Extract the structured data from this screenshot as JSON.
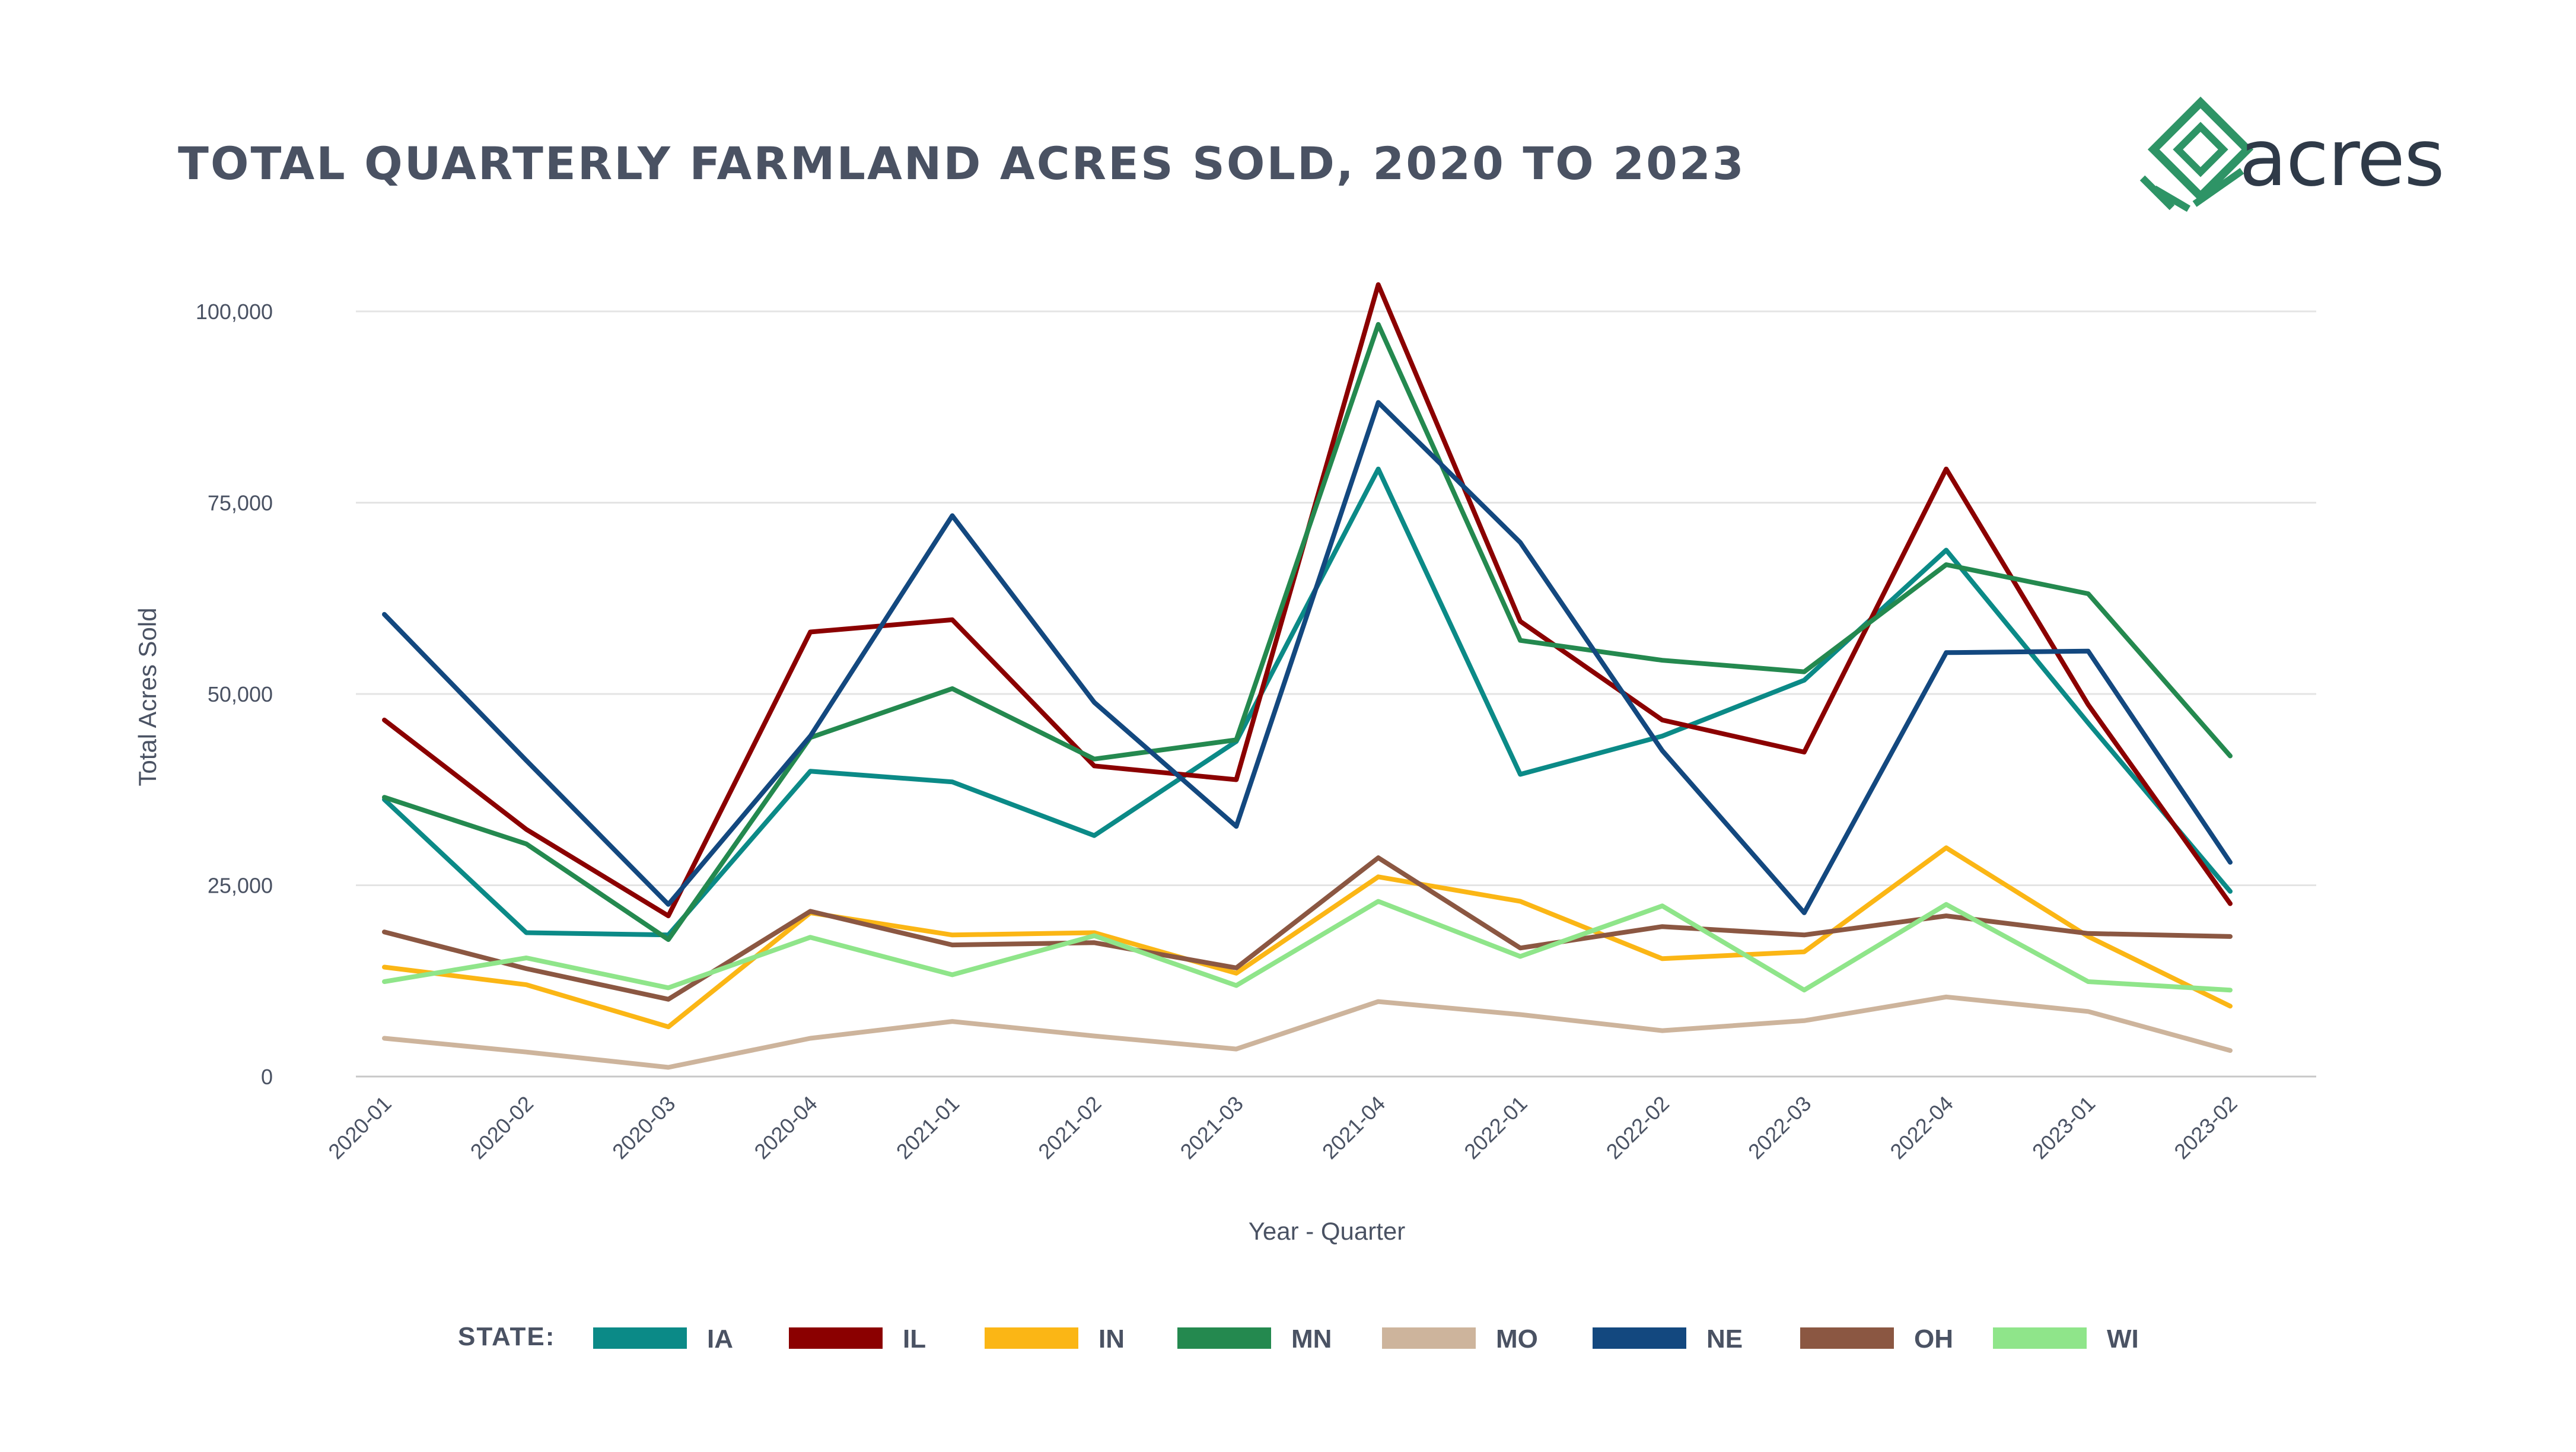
{
  "logo": {
    "text": "acres",
    "colors": {
      "mark": "#2e9466",
      "text": "#2f3a48"
    }
  },
  "chart_data": {
    "type": "line",
    "title": "TOTAL QUARTERLY FARMLAND ACRES SOLD, 2020 TO 2023",
    "xlabel": "Year - Quarter",
    "ylabel": "Total Acres Sold",
    "ylim": [
      0,
      100000
    ],
    "yticks": [
      0,
      25000,
      50000,
      75000,
      100000
    ],
    "ytick_labels": [
      "0",
      "25,000",
      "50,000",
      "75,000",
      "100,000"
    ],
    "grid": true,
    "legend_title": "STATE:",
    "legend_position": "bottom",
    "categories": [
      "2020-01",
      "2020-02",
      "2020-03",
      "2020-04",
      "2021-01",
      "2021-02",
      "2021-03",
      "2021-04",
      "2022-01",
      "2022-02",
      "2022-03",
      "2022-04",
      "2023-01",
      "2023-02"
    ],
    "series": [
      {
        "name": "IA",
        "color": "#0b8a87",
        "values": [
          36200,
          18800,
          18500,
          39900,
          38500,
          31500,
          43800,
          79400,
          39500,
          44500,
          51800,
          68800,
          46200,
          24200
        ]
      },
      {
        "name": "IL",
        "color": "#8b0000",
        "values": [
          46600,
          32300,
          21000,
          58100,
          59700,
          40600,
          38800,
          103500,
          59500,
          46600,
          42400,
          79400,
          48600,
          22600
        ]
      },
      {
        "name": "IN",
        "color": "#fbb615",
        "values": [
          14300,
          12000,
          6500,
          21400,
          18500,
          18800,
          13500,
          26100,
          22900,
          15400,
          16300,
          29900,
          18300,
          9200
        ]
      },
      {
        "name": "MN",
        "color": "#24894f",
        "values": [
          36500,
          30400,
          17900,
          44300,
          50700,
          41500,
          44000,
          98300,
          57000,
          54400,
          52900,
          66900,
          63100,
          41900
        ]
      },
      {
        "name": "MO",
        "color": "#cdb49c",
        "values": [
          5000,
          3200,
          1200,
          5000,
          7200,
          5300,
          3600,
          9800,
          8100,
          6000,
          7300,
          10400,
          8500,
          3400
        ]
      },
      {
        "name": "NE",
        "color": "#13487f",
        "values": [
          60400,
          41300,
          22500,
          44500,
          73300,
          48900,
          32700,
          88100,
          69800,
          42600,
          21400,
          55400,
          55600,
          28000
        ]
      },
      {
        "name": "OH",
        "color": "#8b5742",
        "values": [
          18900,
          14100,
          10100,
          21600,
          17200,
          17500,
          14200,
          28600,
          16800,
          19600,
          18500,
          21000,
          18700,
          18300
        ]
      },
      {
        "name": "WI",
        "color": "#8fe58a",
        "values": [
          12400,
          15500,
          11600,
          18200,
          13300,
          18400,
          11900,
          22900,
          15700,
          22300,
          11300,
          22500,
          12400,
          11300
        ]
      }
    ]
  }
}
